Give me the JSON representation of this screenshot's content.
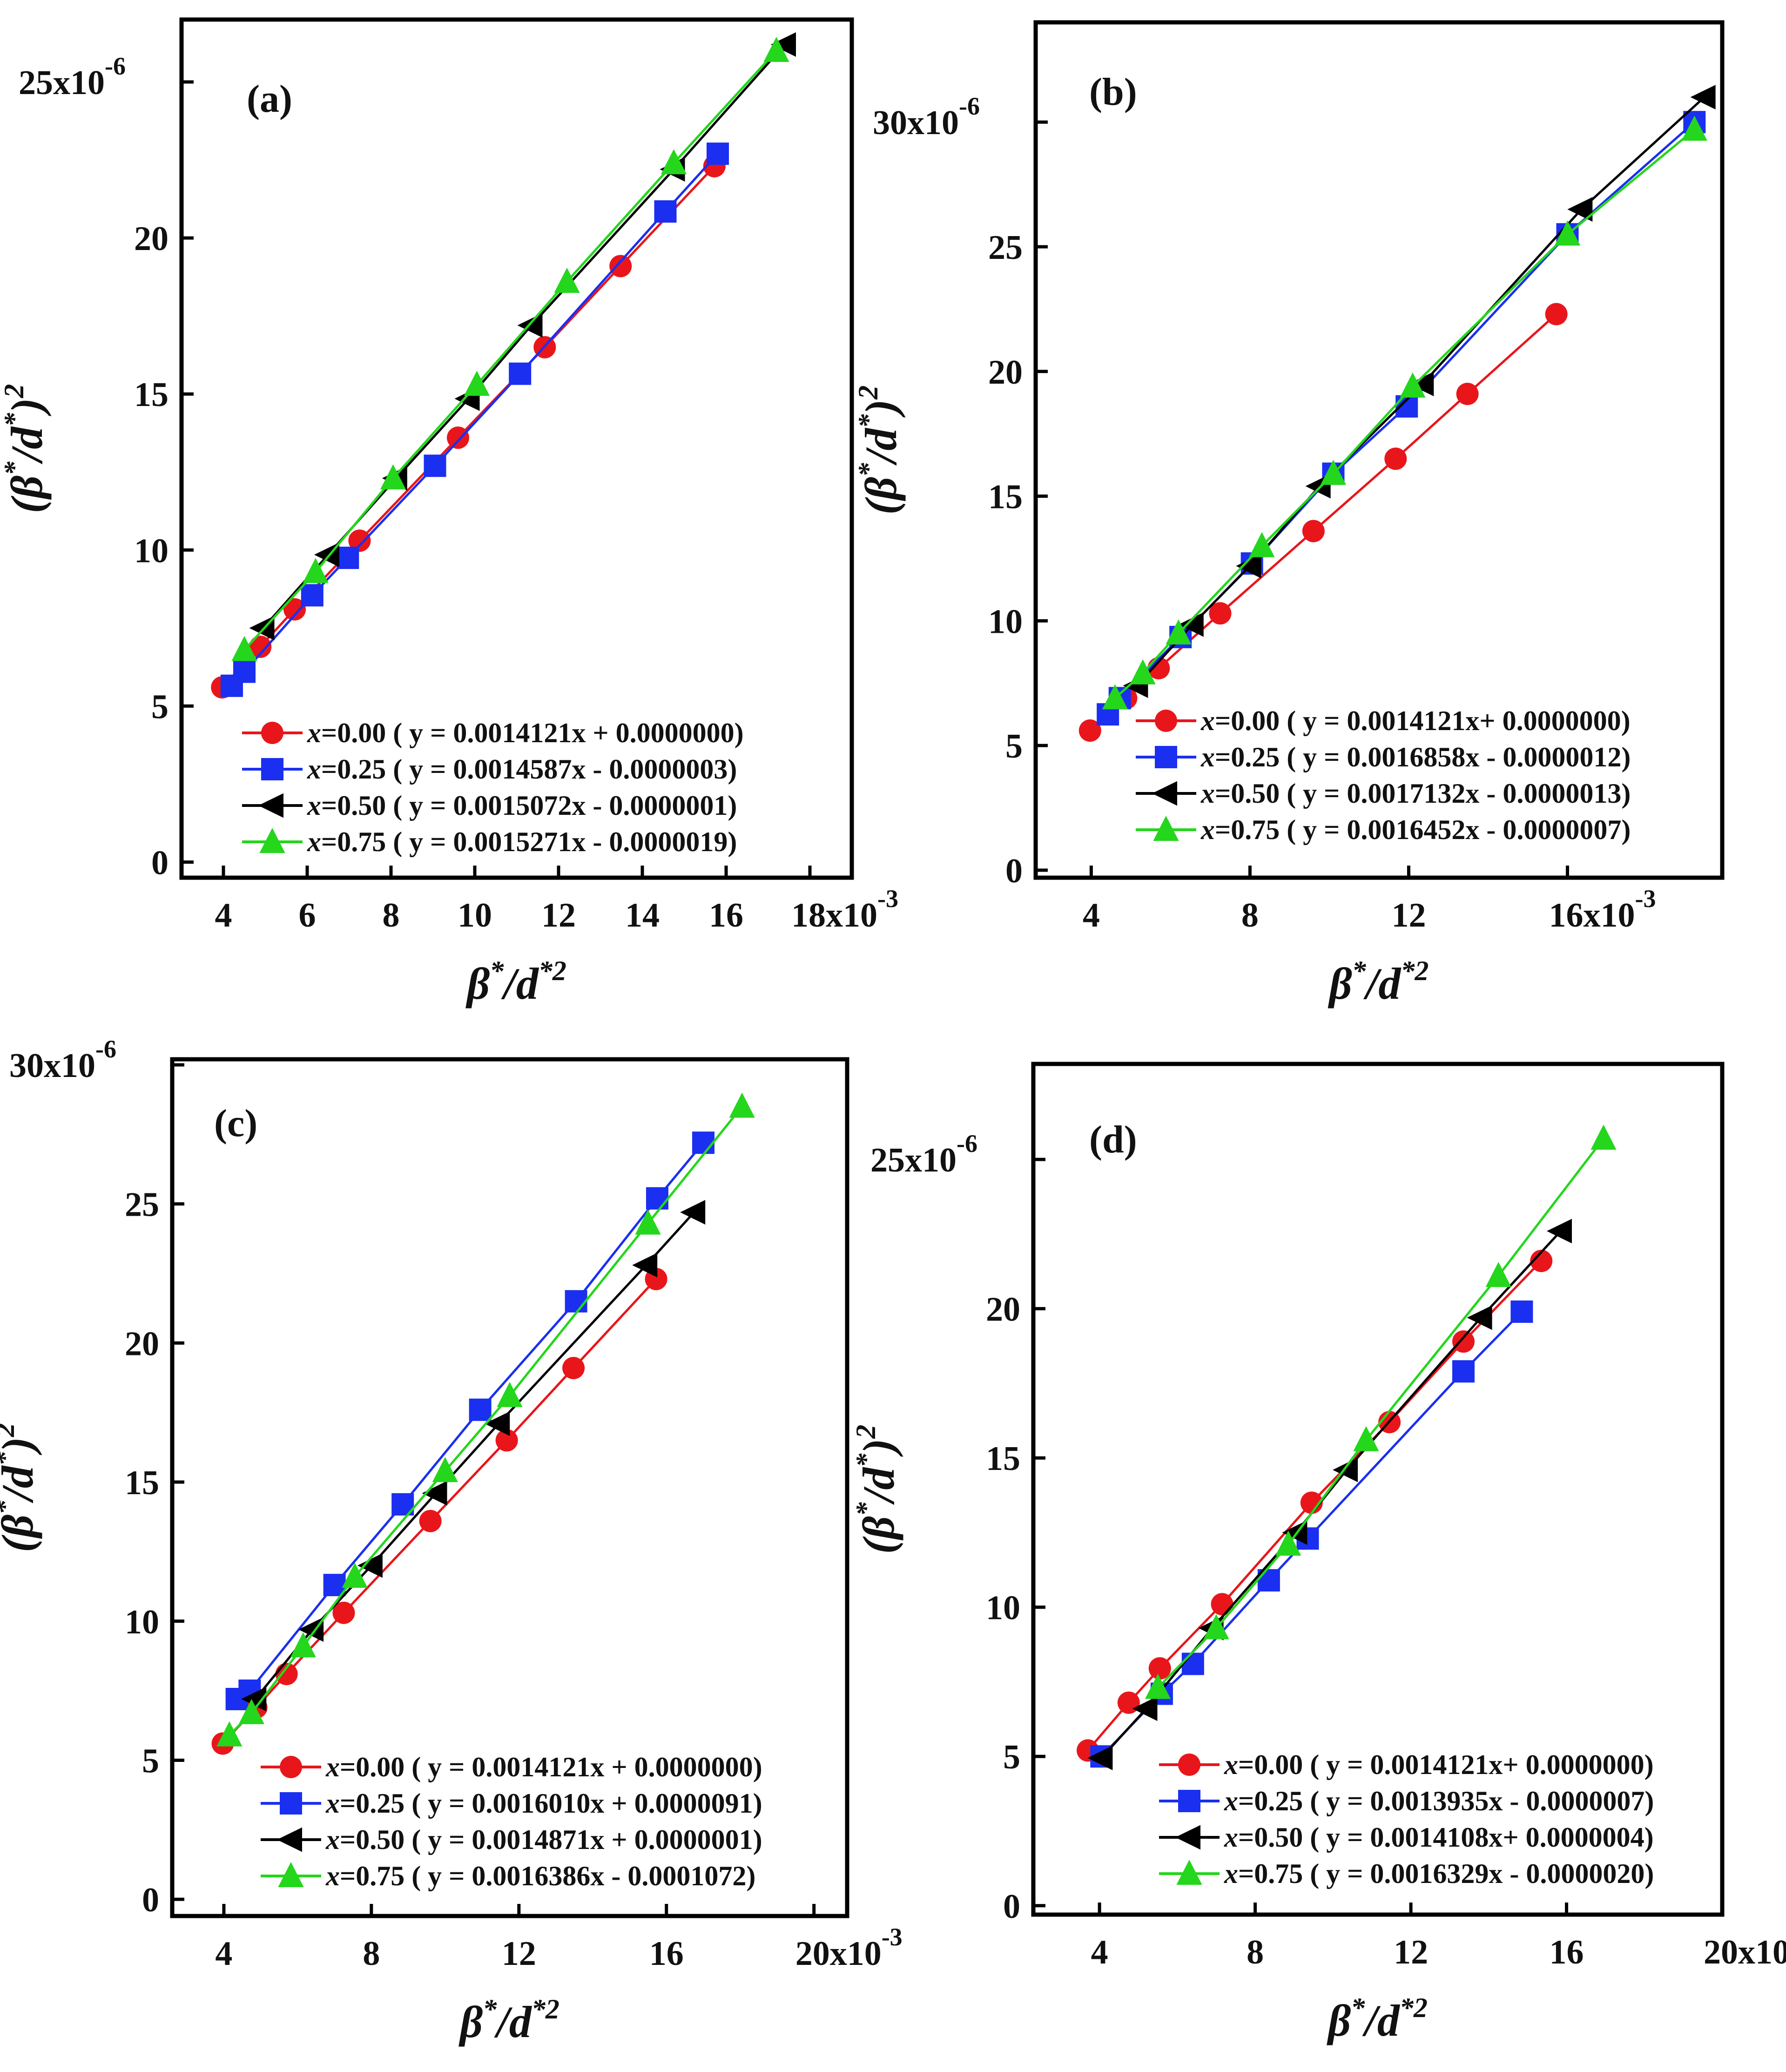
{
  "figure": {
    "colors": {
      "x000": "#e8161b",
      "x025": "#1a2ff0",
      "x050": "#000000",
      "x075": "#24d61c"
    },
    "x_multiplier_exp": "-3",
    "y_multiplier_exp": "-6"
  },
  "chart_data": [
    {
      "panel": "(a)",
      "type": "line",
      "xlabel": "β*/d*2",
      "ylabel": "(β*/d*)2",
      "x_scale": "x10^-3",
      "y_scale": "x10^-6",
      "xlim": [
        3,
        19
      ],
      "ylim": [
        -0.5,
        27
      ],
      "x_ticks": [
        4,
        6,
        8,
        10,
        12,
        14,
        16,
        18
      ],
      "x_tick_labels": [
        "4",
        "6",
        "8",
        "10",
        "12",
        "14",
        "16",
        "18x10"
      ],
      "y_ticks": [
        0,
        5,
        10,
        15,
        20,
        25
      ],
      "y_tick_labels": [
        "0",
        "5",
        "10",
        "15",
        "20",
        "25x10"
      ],
      "legend": "bottom-right",
      "series": [
        {
          "name": "x=0.00",
          "label_x": "x=0.00",
          "equation": "( y = 0.0014121x + 0.0000000)",
          "marker": "circle",
          "color_key": "x000",
          "x": [
            3.97,
            4.88,
            5.7,
            7.25,
            9.6,
            11.67,
            13.48,
            15.72
          ],
          "y": [
            5.6,
            6.9,
            8.1,
            10.3,
            13.6,
            16.5,
            19.1,
            22.3
          ]
        },
        {
          "name": "x=0.25",
          "label_x": "x=0.25",
          "equation": "( y = 0.0014587x - 0.0000003)",
          "marker": "square",
          "color_key": "x025",
          "x": [
            4.2,
            4.5,
            6.12,
            6.97,
            9.05,
            11.08,
            14.55,
            15.8
          ],
          "y": [
            5.65,
            6.1,
            8.55,
            9.75,
            12.7,
            15.65,
            20.85,
            22.7
          ]
        },
        {
          "name": "x=0.50",
          "label_x": "x=0.50",
          "equation": "( y = 0.0015072x - 0.0000001)",
          "marker": "triangle-left",
          "color_key": "x050",
          "x": [
            4.95,
            6.5,
            8.12,
            9.85,
            11.35,
            14.75,
            17.4
          ],
          "y": [
            7.5,
            9.85,
            12.3,
            14.85,
            17.2,
            22.2,
            26.2
          ]
        },
        {
          "name": "x=0.75",
          "label_x": "x=0.75",
          "equation": "( y = 0.0015271x - 0.0000019)",
          "marker": "triangle-up",
          "color_key": "x075",
          "x": [
            4.5,
            6.2,
            8.05,
            10.05,
            12.2,
            14.75,
            17.2
          ],
          "y": [
            6.8,
            9.3,
            12.3,
            15.3,
            18.6,
            22.4,
            26.0
          ]
        }
      ]
    },
    {
      "panel": "(b)",
      "type": "line",
      "xlabel": "β*/d*2",
      "ylabel": "(β*/d*)2",
      "x_scale": "x10^-3",
      "y_scale": "x10^-6",
      "xlim": [
        2.6,
        19.9
      ],
      "ylim": [
        -0.3,
        34
      ],
      "x_ticks": [
        4,
        8,
        12,
        16
      ],
      "x_tick_labels": [
        "4",
        "8",
        "12",
        "16x10"
      ],
      "y_ticks": [
        0,
        5,
        10,
        15,
        20,
        25,
        30
      ],
      "y_tick_labels": [
        "0",
        "5",
        "10",
        "15",
        "20",
        "25",
        "30x10"
      ],
      "legend": "bottom-right",
      "series": [
        {
          "name": "x=0.00",
          "label_x": "x=0.00",
          "equation": "( y = 0.0014121x+ 0.0000000)",
          "marker": "circle",
          "color_key": "x000",
          "x": [
            3.97,
            4.88,
            5.7,
            7.25,
            9.6,
            11.67,
            13.48,
            15.72
          ],
          "y": [
            5.6,
            6.9,
            8.1,
            10.3,
            13.6,
            16.5,
            19.1,
            22.3
          ]
        },
        {
          "name": "x=0.25",
          "label_x": "x=0.25",
          "equation": "( y = 0.0016858x - 0.0000012)",
          "marker": "square",
          "color_key": "x025",
          "x": [
            4.42,
            4.72,
            6.25,
            8.05,
            10.1,
            11.95,
            16.0,
            19.2
          ],
          "y": [
            6.25,
            6.9,
            9.35,
            12.3,
            15.9,
            18.6,
            25.5,
            30.0
          ]
        },
        {
          "name": "x=0.50",
          "label_x": "x=0.50",
          "equation": "( y = 0.0017132x - 0.0000013)",
          "marker": "triangle-left",
          "color_key": "x050",
          "x": [
            5.15,
            6.55,
            8.0,
            9.75,
            12.35,
            16.35,
            19.45
          ],
          "y": [
            7.4,
            9.85,
            12.2,
            15.4,
            19.5,
            26.5,
            31.0
          ]
        },
        {
          "name": "x=0.75",
          "label_x": "x=0.75",
          "equation": "( y = 0.0016452x - 0.0000007)",
          "marker": "triangle-up",
          "color_key": "x075",
          "x": [
            4.6,
            5.3,
            6.2,
            8.3,
            10.1,
            12.1,
            16.0,
            19.2
          ],
          "y": [
            6.9,
            7.9,
            9.5,
            13.0,
            15.9,
            19.4,
            25.5,
            29.7
          ]
        }
      ]
    },
    {
      "panel": "(c)",
      "type": "line",
      "xlabel": "β*/d*2",
      "ylabel": "(β*/d*)2",
      "x_scale": "x10^-3",
      "y_scale": "x10^-6",
      "xlim": [
        2.6,
        20.9
      ],
      "ylim": [
        -0.6,
        30.2
      ],
      "x_ticks": [
        4,
        8,
        12,
        16,
        20
      ],
      "x_tick_labels": [
        "4",
        "8",
        "12",
        "16",
        "20x10"
      ],
      "y_ticks": [
        0,
        5,
        10,
        15,
        20,
        25,
        30
      ],
      "y_tick_labels": [
        "0",
        "5",
        "10",
        "15",
        "20",
        "25",
        "30x10"
      ],
      "legend": "bottom-right",
      "series": [
        {
          "name": "x=0.00",
          "label_x": "x=0.00",
          "equation": "( y = 0.0014121x + 0.0000000)",
          "marker": "circle",
          "color_key": "x000",
          "x": [
            3.97,
            4.88,
            5.7,
            7.25,
            9.6,
            11.67,
            13.48,
            15.72
          ],
          "y": [
            5.6,
            6.9,
            8.1,
            10.3,
            13.6,
            16.5,
            19.1,
            22.3
          ]
        },
        {
          "name": "x=0.25",
          "label_x": "x=0.25",
          "equation": "( y = 0.0016010x + 0.0000091)",
          "marker": "square",
          "color_key": "x025",
          "x": [
            4.35,
            4.7,
            7.0,
            8.85,
            10.95,
            13.55,
            15.75,
            17.0
          ],
          "y": [
            7.2,
            7.5,
            11.3,
            14.2,
            17.6,
            21.5,
            25.2,
            27.2
          ]
        },
        {
          "name": "x=0.50",
          "label_x": "x=0.50",
          "equation": "( y = 0.0014871x + 0.0000001)",
          "marker": "triangle-left",
          "color_key": "x050",
          "x": [
            4.85,
            6.4,
            8.0,
            9.75,
            11.45,
            15.45,
            16.75
          ],
          "y": [
            7.2,
            9.7,
            12.0,
            14.6,
            17.1,
            22.8,
            24.7
          ]
        },
        {
          "name": "x=0.75",
          "label_x": "x=0.75",
          "equation": "( y = 0.0016386x - 0.0001072)",
          "marker": "triangle-up",
          "color_key": "x075",
          "x": [
            4.15,
            4.75,
            6.15,
            7.55,
            10.0,
            11.75,
            15.5,
            18.05
          ],
          "y": [
            5.9,
            6.7,
            9.1,
            11.6,
            15.4,
            18.1,
            24.3,
            28.5
          ]
        }
      ]
    },
    {
      "panel": "(d)",
      "type": "line",
      "xlabel": "β*/d*2",
      "ylabel": "(β*/d*)2",
      "x_scale": "x10^-3",
      "y_scale": "x10^-6",
      "xlim": [
        2.3,
        20.0
      ],
      "ylim": [
        -0.3,
        28.2
      ],
      "x_ticks": [
        4,
        8,
        12,
        16,
        20
      ],
      "x_tick_labels": [
        "4",
        "8",
        "12",
        "16",
        "20x10"
      ],
      "y_ticks": [
        0,
        5,
        10,
        15,
        20,
        25
      ],
      "y_tick_labels": [
        "0",
        "5",
        "10",
        "15",
        "20",
        "25x10"
      ],
      "legend": "bottom-right",
      "series": [
        {
          "name": "x=0.00",
          "label_x": "x=0.00",
          "equation": "( y = 0.0014121x+ 0.0000000)",
          "marker": "circle",
          "color_key": "x000",
          "x": [
            3.7,
            4.75,
            5.55,
            7.15,
            9.45,
            11.45,
            13.35,
            15.35
          ],
          "y": [
            5.2,
            6.8,
            7.95,
            10.1,
            13.5,
            16.2,
            18.9,
            21.6
          ]
        },
        {
          "name": "x=0.25",
          "label_x": "x=0.25",
          "equation": "( y = 0.0013935x - 0.0000007)",
          "marker": "square",
          "color_key": "x025",
          "x": [
            4.05,
            5.6,
            6.4,
            8.35,
            9.35,
            13.35,
            14.85
          ],
          "y": [
            5.0,
            7.1,
            8.1,
            10.9,
            12.3,
            17.9,
            19.9
          ]
        },
        {
          "name": "x=0.50",
          "label_x": "x=0.50",
          "equation": "( y = 0.0014108x+ 0.0000004)",
          "marker": "triangle-left",
          "color_key": "x050",
          "x": [
            4.05,
            5.2,
            6.9,
            9.05,
            10.35,
            13.8,
            15.85
          ],
          "y": [
            4.95,
            6.6,
            9.3,
            12.5,
            14.6,
            19.7,
            22.6
          ]
        },
        {
          "name": "x=0.75",
          "label_x": "x=0.75",
          "equation": "( y = 0.0016329x - 0.0000020)",
          "marker": "triangle-up",
          "color_key": "x075",
          "x": [
            5.5,
            7.0,
            8.85,
            10.85,
            14.25,
            16.95
          ],
          "y": [
            7.3,
            9.3,
            12.1,
            15.6,
            21.1,
            25.7
          ]
        }
      ]
    }
  ]
}
